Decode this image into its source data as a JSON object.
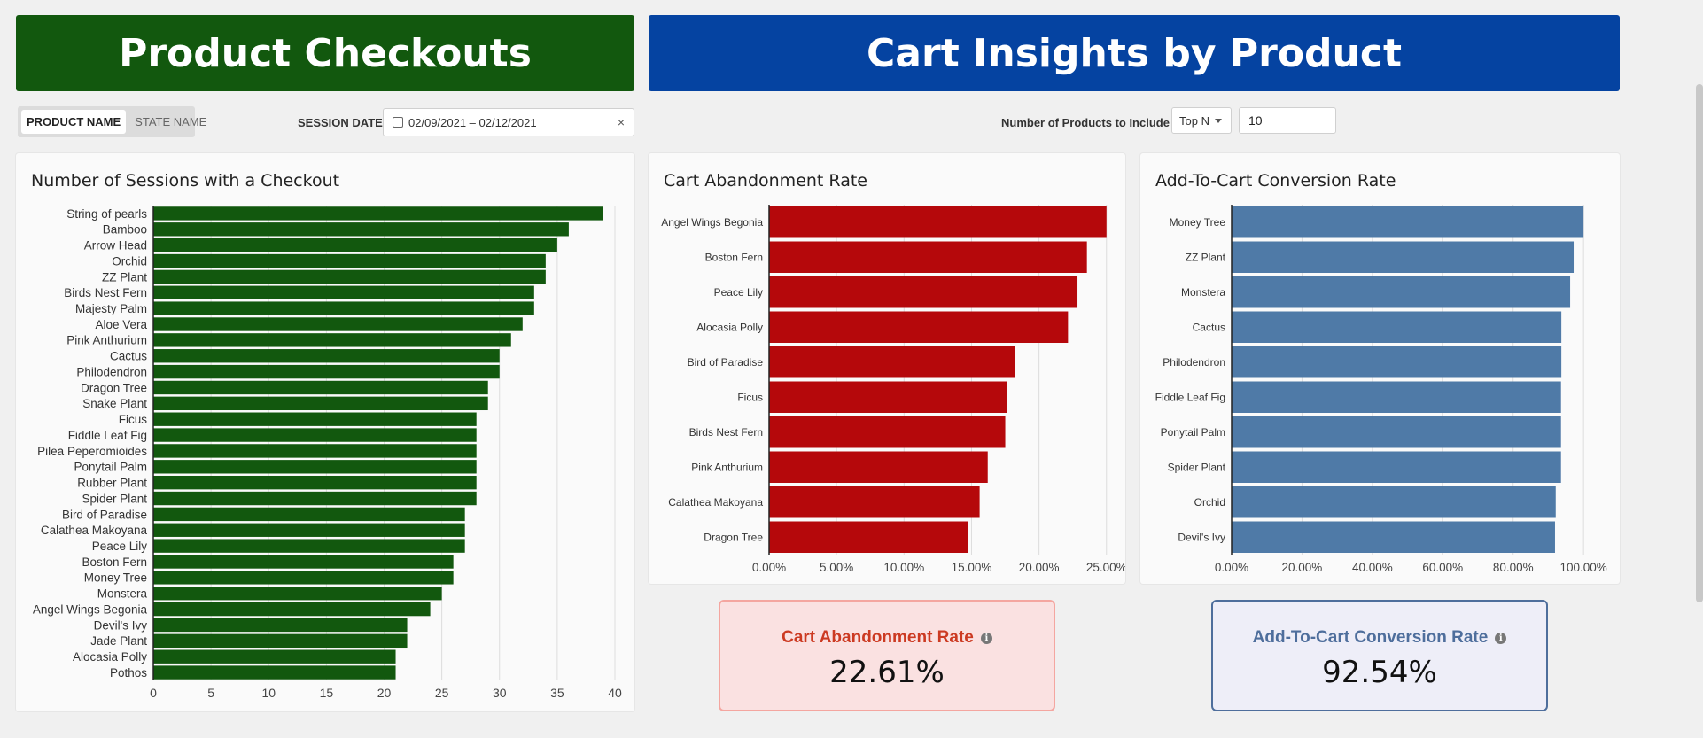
{
  "colors": {
    "green": "#12580e",
    "blue": "#0543a1",
    "red": "#b5080b",
    "steel": "#4f7aa7",
    "abandon_label": "#cc3a22",
    "convert_label": "#4e6e9c"
  },
  "banners": {
    "left": "Product Checkouts",
    "right": "Cart Insights by Product"
  },
  "filters": {
    "toggle_options": [
      "PRODUCT NAME",
      "STATE NAME"
    ],
    "active_toggle": "PRODUCT NAME",
    "session_date_label": "SESSION DATE",
    "session_date_value": "02/09/2021 – 02/12/2021",
    "clear_symbol": "×",
    "products_label": "Number of Products to Include",
    "topn_value": "Top N",
    "count_value": "10"
  },
  "chart_data": [
    {
      "id": "sessions",
      "type": "bar",
      "orientation": "horizontal",
      "title": "Number of Sessions with a Checkout",
      "categories": [
        "String of pearls",
        "Bamboo",
        "Arrow Head",
        "Orchid",
        "ZZ Plant",
        "Birds Nest Fern",
        "Majesty Palm",
        "Aloe Vera",
        "Pink Anthurium",
        "Cactus",
        "Philodendron",
        "Dragon Tree",
        "Snake Plant",
        "Ficus",
        "Fiddle Leaf Fig",
        "Pilea Peperomioides",
        "Ponytail Palm",
        "Rubber Plant",
        "Spider Plant",
        "Bird of Paradise",
        "Calathea Makoyana",
        "Peace Lily",
        "Boston Fern",
        "Money Tree",
        "Monstera",
        "Angel Wings Begonia",
        "Devil's Ivy",
        "Jade Plant",
        "Alocasia Polly",
        "Pothos"
      ],
      "values": [
        39,
        36,
        35,
        34,
        34,
        33,
        33,
        32,
        31,
        30,
        30,
        29,
        29,
        28,
        28,
        28,
        28,
        28,
        28,
        27,
        27,
        27,
        26,
        26,
        25,
        24,
        22,
        22,
        21,
        21
      ],
      "xlim": [
        0,
        40
      ],
      "ticks": [
        0,
        5,
        10,
        15,
        20,
        25,
        30,
        35,
        40
      ],
      "tick_labels": [
        "0",
        "5",
        "10",
        "15",
        "20",
        "25",
        "30",
        "35",
        "40"
      ],
      "grid": true
    },
    {
      "id": "abandon",
      "type": "bar",
      "orientation": "horizontal",
      "title": "Cart Abandonment Rate",
      "categories": [
        "Angel Wings Begonia",
        "Boston Fern",
        "Peace Lily",
        "Alocasia Polly",
        "Bird of Paradise",
        "Ficus",
        "Birds Nest Fern",
        "Pink Anthurium",
        "Calathea Makoyana",
        "Dragon Tree"
      ],
      "values": [
        0.25,
        0.2355,
        0.2285,
        0.2215,
        0.182,
        0.1765,
        0.175,
        0.162,
        0.156,
        0.1475
      ],
      "xlim": [
        0,
        0.26
      ],
      "ticks": [
        0,
        0.05,
        0.1,
        0.15,
        0.2,
        0.25
      ],
      "tick_labels": [
        "0.00%",
        "5.00%",
        "10.00%",
        "15.00%",
        "20.00%",
        "25.00%"
      ],
      "grid": true
    },
    {
      "id": "convert",
      "type": "bar",
      "orientation": "horizontal",
      "title": "Add-To-Cart Conversion Rate",
      "categories": [
        "Money Tree",
        "ZZ Plant",
        "Monstera",
        "Cactus",
        "Philodendron",
        "Fiddle Leaf Fig",
        "Ponytail Palm",
        "Spider Plant",
        "Orchid",
        "Devil's Ivy"
      ],
      "values": [
        1.0,
        0.972,
        0.962,
        0.937,
        0.937,
        0.936,
        0.936,
        0.936,
        0.921,
        0.919
      ],
      "xlim": [
        0,
        1.05
      ],
      "ticks": [
        0,
        0.2,
        0.4,
        0.6,
        0.8,
        1.0
      ],
      "tick_labels": [
        "0.00%",
        "20.00%",
        "40.00%",
        "60.00%",
        "80.00%",
        "100.00%"
      ],
      "grid": true
    }
  ],
  "kpis": {
    "abandon": {
      "label": "Cart Abandonment Rate",
      "value": "22.61%",
      "info": "i"
    },
    "convert": {
      "label": "Add-To-Cart Conversion Rate",
      "value": "92.54%",
      "info": "i"
    }
  }
}
